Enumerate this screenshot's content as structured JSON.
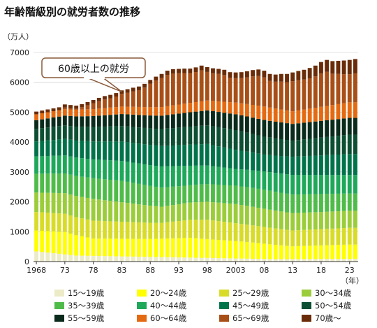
{
  "chart_data": {
    "type": "bar",
    "stacked": true,
    "title": "年齢階級別の就労者数の推移",
    "y_unit_label": "（万人）",
    "x_unit_label": "（年）",
    "ylim": [
      0,
      7000
    ],
    "y_ticks": [
      0,
      1000,
      2000,
      3000,
      4000,
      5000,
      6000,
      7000
    ],
    "x_tick_labels": [
      {
        "year": 1968,
        "label": "1968"
      },
      {
        "year": 1973,
        "label": "73"
      },
      {
        "year": 1978,
        "label": "78"
      },
      {
        "year": 1983,
        "label": "83"
      },
      {
        "year": 1988,
        "label": "88"
      },
      {
        "year": 1993,
        "label": "93"
      },
      {
        "year": 1998,
        "label": "98"
      },
      {
        "year": 2003,
        "label": "2003"
      },
      {
        "year": 2008,
        "label": "08"
      },
      {
        "year": 2013,
        "label": "13"
      },
      {
        "year": 2018,
        "label": "18"
      },
      {
        "year": 2023,
        "label": "23"
      }
    ],
    "grid": true,
    "legend_position": "bottom",
    "annotation": {
      "text": "60歳以上の就労",
      "target_year": 1983
    },
    "x_start_year": 1968,
    "totals": [
      5000,
      5050,
      5090,
      5110,
      5120,
      5260,
      5240,
      5220,
      5270,
      5340,
      5410,
      5480,
      5540,
      5580,
      5640,
      5730,
      5770,
      5820,
      5860,
      5950,
      6080,
      6190,
      6280,
      6390,
      6440,
      6450,
      6460,
      6460,
      6500,
      6560,
      6510,
      6470,
      6450,
      6420,
      6340,
      6330,
      6340,
      6370,
      6410,
      6430,
      6390,
      6280,
      6260,
      6280,
      6280,
      6330,
      6380,
      6420,
      6480,
      6560,
      6680,
      6750,
      6710,
      6720,
      6730,
      6750,
      6780
    ],
    "series": [
      {
        "name": "15〜19歳",
        "color": "#ecebc8",
        "anchors": [
          [
            1968,
            340
          ],
          [
            1975,
            200
          ],
          [
            1990,
            150
          ],
          [
            2010,
            80
          ],
          [
            2023,
            90
          ]
        ]
      },
      {
        "name": "20〜24歳",
        "color": "#ffff00",
        "anchors": [
          [
            1968,
            700
          ],
          [
            1973,
            750
          ],
          [
            1978,
            580
          ],
          [
            1988,
            600
          ],
          [
            1995,
            660
          ],
          [
            2005,
            560
          ],
          [
            2013,
            430
          ],
          [
            2023,
            480
          ]
        ]
      },
      {
        "name": "25〜29歳",
        "color": "#d8dc28",
        "anchors": [
          [
            1968,
            620
          ],
          [
            1978,
            600
          ],
          [
            1990,
            530
          ],
          [
            1998,
            650
          ],
          [
            2005,
            580
          ],
          [
            2013,
            530
          ],
          [
            2023,
            560
          ]
        ]
      },
      {
        "name": "30〜34歳",
        "color": "#9bcd3a",
        "anchors": [
          [
            1968,
            650
          ],
          [
            1978,
            730
          ],
          [
            1990,
            540
          ],
          [
            2003,
            640
          ],
          [
            2013,
            580
          ],
          [
            2023,
            570
          ]
        ]
      },
      {
        "name": "35〜39歳",
        "color": "#4fbc4a",
        "anchors": [
          [
            1968,
            630
          ],
          [
            1983,
            720
          ],
          [
            1995,
            580
          ],
          [
            2008,
            640
          ],
          [
            2023,
            580
          ]
        ]
      },
      {
        "name": "40〜44歳",
        "color": "#1ea85a",
        "anchors": [
          [
            1968,
            580
          ],
          [
            1978,
            630
          ],
          [
            1990,
            710
          ],
          [
            2003,
            560
          ],
          [
            2013,
            660
          ],
          [
            2023,
            620
          ]
        ]
      },
      {
        "name": "45〜49歳",
        "color": "#00734a",
        "anchors": [
          [
            1968,
            500
          ],
          [
            1983,
            650
          ],
          [
            1998,
            720
          ],
          [
            2008,
            560
          ],
          [
            2023,
            700
          ]
        ]
      },
      {
        "name": "50〜54歳",
        "color": "#0c4f32",
        "anchors": [
          [
            1968,
            420
          ],
          [
            1983,
            520
          ],
          [
            2003,
            660
          ],
          [
            2013,
            540
          ],
          [
            2023,
            650
          ]
        ]
      },
      {
        "name": "55〜59歳",
        "color": "#0a2b1c",
        "anchors": [
          [
            1968,
            290
          ],
          [
            1983,
            400
          ],
          [
            1998,
            500
          ],
          [
            2008,
            560
          ],
          [
            2023,
            560
          ]
        ]
      },
      {
        "name": "60〜64歳",
        "color": "#e46a12",
        "anchors": [
          [
            1968,
            200
          ],
          [
            1983,
            250
          ],
          [
            1998,
            330
          ],
          [
            2008,
            450
          ],
          [
            2013,
            420
          ],
          [
            2023,
            520
          ]
        ]
      },
      {
        "name": "65〜69歳",
        "color": "#a84f18",
        "anchors": [
          [
            1968,
            1
          ],
          [
            2023,
            1
          ]
        ],
        "remainder_after": true
      },
      {
        "name": "70歳〜",
        "color": "#6a2c08",
        "anchors": [
          [
            1968,
            90
          ],
          [
            1985,
            120
          ],
          [
            2000,
            170
          ],
          [
            2010,
            240
          ],
          [
            2018,
            380
          ],
          [
            2023,
            480
          ]
        ]
      }
    ]
  }
}
